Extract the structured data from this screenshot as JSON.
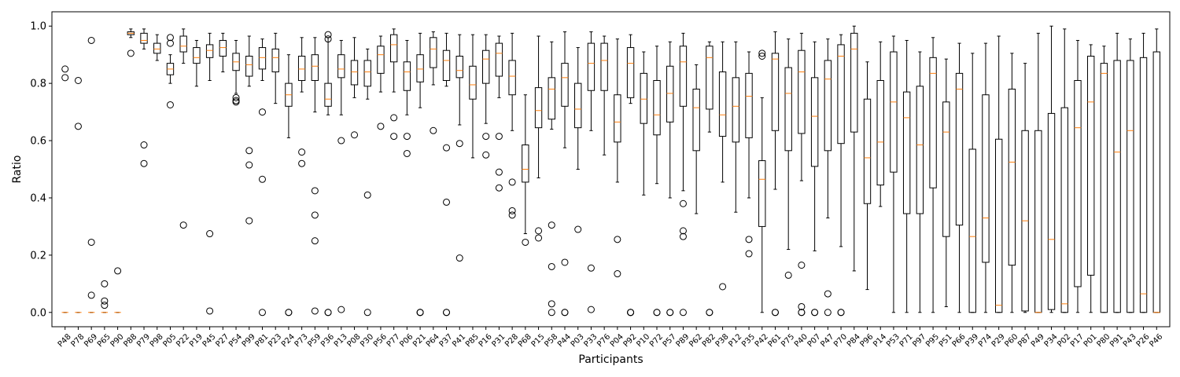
{
  "chart_data": {
    "type": "box",
    "xlabel": "Participants",
    "ylabel": "Ratio",
    "ylim": [
      -0.05,
      1.05
    ],
    "yticks": [
      0.0,
      0.2,
      0.4,
      0.6,
      0.8,
      1.0
    ],
    "ytick_labels": [
      "0.0",
      "0.2",
      "0.4",
      "0.6",
      "0.8",
      "1.0"
    ],
    "grid": false,
    "legend": "none",
    "colors": {
      "box": "#000000",
      "median": "#ff7f0e",
      "flier": "#000000"
    },
    "categories": [
      "P48",
      "P78",
      "P69",
      "P65",
      "P90",
      "P88",
      "P79",
      "P98",
      "P05",
      "P22",
      "P19",
      "P45",
      "P27",
      "P54",
      "P99",
      "P81",
      "P23",
      "P24",
      "P73",
      "P59",
      "P36",
      "P13",
      "P08",
      "P30",
      "P56",
      "P77",
      "P06",
      "P21",
      "P64",
      "P37",
      "P41",
      "P85",
      "P16",
      "P31",
      "P28",
      "P68",
      "P15",
      "P58",
      "P44",
      "P03",
      "P33",
      "P76",
      "P04",
      "P92",
      "P10",
      "P72",
      "P57",
      "P89",
      "P62",
      "P82",
      "P38",
      "P12",
      "P35",
      "P42",
      "P61",
      "P75",
      "P40",
      "P07",
      "P47",
      "P70",
      "P84",
      "P96",
      "P14",
      "P53",
      "P71",
      "P97",
      "P95",
      "P51",
      "P66",
      "P39",
      "P74",
      "P29",
      "P60",
      "P87",
      "P49",
      "P34",
      "P02",
      "P17",
      "P01",
      "P80",
      "P91",
      "P43",
      "P26",
      "P46"
    ],
    "series": [
      {
        "q1": 0,
        "median": 0,
        "q3": 0,
        "whislo": 0,
        "whishi": 0,
        "fliers": [
          0.85,
          0.82
        ]
      },
      {
        "q1": 0,
        "median": 0,
        "q3": 0,
        "whislo": 0,
        "whishi": 0,
        "fliers": [
          0.81,
          0.65
        ]
      },
      {
        "q1": 0,
        "median": 0,
        "q3": 0,
        "whislo": 0,
        "whishi": 0,
        "fliers": [
          0.95,
          0.245,
          0.06
        ]
      },
      {
        "q1": 0,
        "median": 0,
        "q3": 0,
        "whislo": 0,
        "whishi": 0,
        "fliers": [
          0.1,
          0.04,
          0.025
        ]
      },
      {
        "q1": 0,
        "median": 0,
        "q3": 0,
        "whislo": 0,
        "whishi": 0,
        "fliers": [
          0.145
        ]
      },
      {
        "q1": 0.97,
        "median": 0.975,
        "q3": 0.98,
        "whislo": 0.96,
        "whishi": 0.99,
        "fliers": [
          0.905
        ]
      },
      {
        "q1": 0.94,
        "median": 0.95,
        "q3": 0.975,
        "whislo": 0.92,
        "whishi": 0.99,
        "fliers": [
          0.585,
          0.52
        ]
      },
      {
        "q1": 0.905,
        "median": 0.92,
        "q3": 0.94,
        "whislo": 0.88,
        "whishi": 0.97,
        "fliers": []
      },
      {
        "q1": 0.83,
        "median": 0.85,
        "q3": 0.87,
        "whislo": 0.8,
        "whishi": 0.9,
        "fliers": [
          0.96,
          0.94,
          0.725
        ]
      },
      {
        "q1": 0.91,
        "median": 0.93,
        "q3": 0.965,
        "whislo": 0.87,
        "whishi": 0.99,
        "fliers": [
          0.305
        ]
      },
      {
        "q1": 0.87,
        "median": 0.89,
        "q3": 0.925,
        "whislo": 0.79,
        "whishi": 0.95,
        "fliers": []
      },
      {
        "q1": 0.89,
        "median": 0.915,
        "q3": 0.935,
        "whislo": 0.81,
        "whishi": 0.975,
        "fliers": [
          0.275,
          0.005
        ]
      },
      {
        "q1": 0.895,
        "median": 0.925,
        "q3": 0.95,
        "whislo": 0.84,
        "whishi": 0.975,
        "fliers": []
      },
      {
        "q1": 0.845,
        "median": 0.875,
        "q3": 0.905,
        "whislo": 0.765,
        "whishi": 0.95,
        "fliers": [
          0.75,
          0.74,
          0.735
        ]
      },
      {
        "q1": 0.825,
        "median": 0.865,
        "q3": 0.895,
        "whislo": 0.79,
        "whishi": 0.965,
        "fliers": [
          0.565,
          0.515,
          0.32
        ]
      },
      {
        "q1": 0.85,
        "median": 0.89,
        "q3": 0.925,
        "whislo": 0.81,
        "whishi": 0.955,
        "fliers": [
          0.7,
          0.465,
          0.0
        ]
      },
      {
        "q1": 0.84,
        "median": 0.89,
        "q3": 0.92,
        "whislo": 0.73,
        "whishi": 0.975,
        "fliers": []
      },
      {
        "q1": 0.72,
        "median": 0.76,
        "q3": 0.8,
        "whislo": 0.61,
        "whishi": 0.9,
        "fliers": [
          0.0,
          0.0
        ]
      },
      {
        "q1": 0.81,
        "median": 0.85,
        "q3": 0.895,
        "whislo": 0.77,
        "whishi": 0.96,
        "fliers": [
          0.56,
          0.52
        ]
      },
      {
        "q1": 0.81,
        "median": 0.86,
        "q3": 0.9,
        "whislo": 0.7,
        "whishi": 0.96,
        "fliers": [
          0.425,
          0.34,
          0.25,
          0.005
        ]
      },
      {
        "q1": 0.72,
        "median": 0.745,
        "q3": 0.8,
        "whislo": 0.69,
        "whishi": 0.96,
        "fliers": [
          0.97,
          0.955,
          0.0,
          0.0
        ]
      },
      {
        "q1": 0.82,
        "median": 0.85,
        "q3": 0.9,
        "whislo": 0.69,
        "whishi": 0.95,
        "fliers": [
          0.6,
          0.01
        ]
      },
      {
        "q1": 0.795,
        "median": 0.84,
        "q3": 0.88,
        "whislo": 0.75,
        "whishi": 0.96,
        "fliers": [
          0.62
        ]
      },
      {
        "q1": 0.79,
        "median": 0.84,
        "q3": 0.88,
        "whislo": 0.745,
        "whishi": 0.92,
        "fliers": [
          0.41,
          0.0
        ]
      },
      {
        "q1": 0.835,
        "median": 0.9,
        "q3": 0.93,
        "whislo": 0.77,
        "whishi": 0.965,
        "fliers": [
          0.65
        ]
      },
      {
        "q1": 0.875,
        "median": 0.935,
        "q3": 0.97,
        "whislo": 0.77,
        "whishi": 0.99,
        "fliers": [
          0.68,
          0.615
        ]
      },
      {
        "q1": 0.775,
        "median": 0.84,
        "q3": 0.875,
        "whislo": 0.69,
        "whishi": 0.95,
        "fliers": [
          0.615,
          0.555
        ]
      },
      {
        "q1": 0.805,
        "median": 0.85,
        "q3": 0.9,
        "whislo": 0.715,
        "whishi": 0.975,
        "fliers": [
          0.0,
          0.0,
          0.0
        ]
      },
      {
        "q1": 0.855,
        "median": 0.92,
        "q3": 0.96,
        "whislo": 0.795,
        "whishi": 0.98,
        "fliers": [
          0.635
        ]
      },
      {
        "q1": 0.81,
        "median": 0.88,
        "q3": 0.915,
        "whislo": 0.79,
        "whishi": 0.975,
        "fliers": [
          0.575,
          0.385,
          0.0,
          0.0
        ]
      },
      {
        "q1": 0.82,
        "median": 0.845,
        "q3": 0.895,
        "whislo": 0.655,
        "whishi": 0.97,
        "fliers": [
          0.59,
          0.19
        ]
      },
      {
        "q1": 0.745,
        "median": 0.795,
        "q3": 0.86,
        "whislo": 0.54,
        "whishi": 0.97,
        "fliers": []
      },
      {
        "q1": 0.8,
        "median": 0.885,
        "q3": 0.915,
        "whislo": 0.66,
        "whishi": 0.97,
        "fliers": [
          0.615,
          0.55
        ]
      },
      {
        "q1": 0.825,
        "median": 0.905,
        "q3": 0.94,
        "whislo": 0.75,
        "whishi": 0.965,
        "fliers": [
          0.615,
          0.49,
          0.435
        ]
      },
      {
        "q1": 0.76,
        "median": 0.825,
        "q3": 0.88,
        "whislo": 0.635,
        "whishi": 0.975,
        "fliers": [
          0.455,
          0.355,
          0.34
        ]
      },
      {
        "q1": 0.455,
        "median": 0.5,
        "q3": 0.585,
        "whislo": 0.275,
        "whishi": 0.76,
        "fliers": [
          0.245
        ]
      },
      {
        "q1": 0.645,
        "median": 0.705,
        "q3": 0.785,
        "whislo": 0.47,
        "whishi": 0.965,
        "fliers": [
          0.285,
          0.26
        ]
      },
      {
        "q1": 0.675,
        "median": 0.78,
        "q3": 0.82,
        "whislo": 0.64,
        "whishi": 0.945,
        "fliers": [
          0.305,
          0.16,
          0.03,
          0.0
        ]
      },
      {
        "q1": 0.72,
        "median": 0.82,
        "q3": 0.87,
        "whislo": 0.575,
        "whishi": 0.98,
        "fliers": [
          0.175,
          0.0,
          0.0
        ]
      },
      {
        "q1": 0.645,
        "median": 0.71,
        "q3": 0.8,
        "whislo": 0.5,
        "whishi": 0.925,
        "fliers": [
          0.29
        ]
      },
      {
        "q1": 0.775,
        "median": 0.87,
        "q3": 0.94,
        "whislo": 0.635,
        "whishi": 0.98,
        "fliers": [
          0.155,
          0.01
        ]
      },
      {
        "q1": 0.775,
        "median": 0.88,
        "q3": 0.94,
        "whislo": 0.55,
        "whishi": 0.965,
        "fliers": []
      },
      {
        "q1": 0.595,
        "median": 0.665,
        "q3": 0.76,
        "whislo": 0.455,
        "whishi": 0.955,
        "fliers": [
          0.255,
          0.135
        ]
      },
      {
        "q1": 0.75,
        "median": 0.87,
        "q3": 0.925,
        "whislo": 0.73,
        "whishi": 0.97,
        "fliers": [
          0.0,
          0.0,
          0.0
        ]
      },
      {
        "q1": 0.66,
        "median": 0.745,
        "q3": 0.835,
        "whislo": 0.41,
        "whishi": 0.91,
        "fliers": []
      },
      {
        "q1": 0.62,
        "median": 0.69,
        "q3": 0.81,
        "whislo": 0.45,
        "whishi": 0.93,
        "fliers": [
          0.0,
          0.0
        ]
      },
      {
        "q1": 0.665,
        "median": 0.765,
        "q3": 0.86,
        "whislo": 0.4,
        "whishi": 0.945,
        "fliers": [
          0.0,
          0.0
        ]
      },
      {
        "q1": 0.72,
        "median": 0.875,
        "q3": 0.93,
        "whislo": 0.425,
        "whishi": 0.975,
        "fliers": [
          0.38,
          0.285,
          0.265,
          0.0
        ]
      },
      {
        "q1": 0.565,
        "median": 0.715,
        "q3": 0.78,
        "whislo": 0.345,
        "whishi": 0.865,
        "fliers": []
      },
      {
        "q1": 0.71,
        "median": 0.89,
        "q3": 0.93,
        "whislo": 0.63,
        "whishi": 0.945,
        "fliers": [
          0.0,
          0.0
        ]
      },
      {
        "q1": 0.615,
        "median": 0.69,
        "q3": 0.84,
        "whislo": 0.455,
        "whishi": 0.945,
        "fliers": [
          0.09
        ]
      },
      {
        "q1": 0.595,
        "median": 0.72,
        "q3": 0.82,
        "whislo": 0.35,
        "whishi": 0.945,
        "fliers": []
      },
      {
        "q1": 0.61,
        "median": 0.755,
        "q3": 0.835,
        "whislo": 0.4,
        "whishi": 0.91,
        "fliers": [
          0.255,
          0.205
        ]
      },
      {
        "q1": 0.3,
        "median": 0.465,
        "q3": 0.53,
        "whislo": 0.0,
        "whishi": 0.75,
        "fliers": [
          0.905,
          0.895
        ]
      },
      {
        "q1": 0.635,
        "median": 0.885,
        "q3": 0.905,
        "whislo": 0.43,
        "whishi": 0.98,
        "fliers": [
          0.0,
          0.0
        ]
      },
      {
        "q1": 0.565,
        "median": 0.765,
        "q3": 0.855,
        "whislo": 0.22,
        "whishi": 0.955,
        "fliers": [
          0.13
        ]
      },
      {
        "q1": 0.625,
        "median": 0.84,
        "q3": 0.915,
        "whislo": 0.46,
        "whishi": 0.975,
        "fliers": [
          0.165,
          0.02,
          0.0,
          0.0
        ]
      },
      {
        "q1": 0.51,
        "median": 0.685,
        "q3": 0.82,
        "whislo": 0.215,
        "whishi": 0.945,
        "fliers": [
          0.0,
          0.0
        ]
      },
      {
        "q1": 0.565,
        "median": 0.815,
        "q3": 0.88,
        "whislo": 0.33,
        "whishi": 0.955,
        "fliers": [
          0.065,
          0.0
        ]
      },
      {
        "q1": 0.59,
        "median": 0.895,
        "q3": 0.935,
        "whislo": 0.23,
        "whishi": 0.97,
        "fliers": [
          0.0,
          0.0
        ]
      },
      {
        "q1": 0.63,
        "median": 0.92,
        "q3": 0.975,
        "whislo": 0.145,
        "whishi": 1.0,
        "fliers": []
      },
      {
        "q1": 0.38,
        "median": 0.54,
        "q3": 0.745,
        "whislo": 0.08,
        "whishi": 0.875,
        "fliers": []
      },
      {
        "q1": 0.445,
        "median": 0.595,
        "q3": 0.81,
        "whislo": 0.37,
        "whishi": 0.945,
        "fliers": []
      },
      {
        "q1": 0.49,
        "median": 0.735,
        "q3": 0.91,
        "whislo": 0.0,
        "whishi": 0.965,
        "fliers": []
      },
      {
        "q1": 0.345,
        "median": 0.68,
        "q3": 0.77,
        "whislo": 0.0,
        "whishi": 0.95,
        "fliers": []
      },
      {
        "q1": 0.345,
        "median": 0.585,
        "q3": 0.79,
        "whislo": 0.0,
        "whishi": 0.91,
        "fliers": []
      },
      {
        "q1": 0.435,
        "median": 0.835,
        "q3": 0.89,
        "whislo": 0.0,
        "whishi": 0.96,
        "fliers": []
      },
      {
        "q1": 0.265,
        "median": 0.63,
        "q3": 0.735,
        "whislo": 0.02,
        "whishi": 0.885,
        "fliers": []
      },
      {
        "q1": 0.305,
        "median": 0.78,
        "q3": 0.835,
        "whislo": 0.0,
        "whishi": 0.94,
        "fliers": []
      },
      {
        "q1": 0.0,
        "median": 0.265,
        "q3": 0.57,
        "whislo": 0.0,
        "whishi": 0.905,
        "fliers": []
      },
      {
        "q1": 0.175,
        "median": 0.33,
        "q3": 0.76,
        "whislo": 0.0,
        "whishi": 0.94,
        "fliers": []
      },
      {
        "q1": 0.0,
        "median": 0.025,
        "q3": 0.605,
        "whislo": 0.0,
        "whishi": 0.965,
        "fliers": []
      },
      {
        "q1": 0.165,
        "median": 0.525,
        "q3": 0.78,
        "whislo": 0.0,
        "whishi": 0.905,
        "fliers": []
      },
      {
        "q1": 0.005,
        "median": 0.32,
        "q3": 0.635,
        "whislo": 0.0,
        "whishi": 0.87,
        "fliers": []
      },
      {
        "q1": 0.0,
        "median": 0.0,
        "q3": 0.635,
        "whislo": 0.0,
        "whishi": 0.975,
        "fliers": []
      },
      {
        "q1": 0.01,
        "median": 0.255,
        "q3": 0.695,
        "whislo": 0.0,
        "whishi": 1.0,
        "fliers": []
      },
      {
        "q1": 0.0,
        "median": 0.03,
        "q3": 0.715,
        "whislo": 0.0,
        "whishi": 0.99,
        "fliers": []
      },
      {
        "q1": 0.09,
        "median": 0.645,
        "q3": 0.81,
        "whislo": 0.0,
        "whishi": 0.95,
        "fliers": []
      },
      {
        "q1": 0.13,
        "median": 0.735,
        "q3": 0.895,
        "whislo": 0.0,
        "whishi": 0.935,
        "fliers": []
      },
      {
        "q1": 0.0,
        "median": 0.835,
        "q3": 0.87,
        "whislo": 0.0,
        "whishi": 0.93,
        "fliers": []
      },
      {
        "q1": 0.0,
        "median": 0.56,
        "q3": 0.88,
        "whislo": 0.0,
        "whishi": 0.975,
        "fliers": []
      },
      {
        "q1": 0.0,
        "median": 0.635,
        "q3": 0.88,
        "whislo": 0.0,
        "whishi": 0.955,
        "fliers": []
      },
      {
        "q1": 0.0,
        "median": 0.065,
        "q3": 0.89,
        "whislo": 0.0,
        "whishi": 0.975,
        "fliers": []
      },
      {
        "q1": 0.0,
        "median": 0.0,
        "q3": 0.91,
        "whislo": 0.0,
        "whishi": 0.99,
        "fliers": []
      }
    ]
  }
}
